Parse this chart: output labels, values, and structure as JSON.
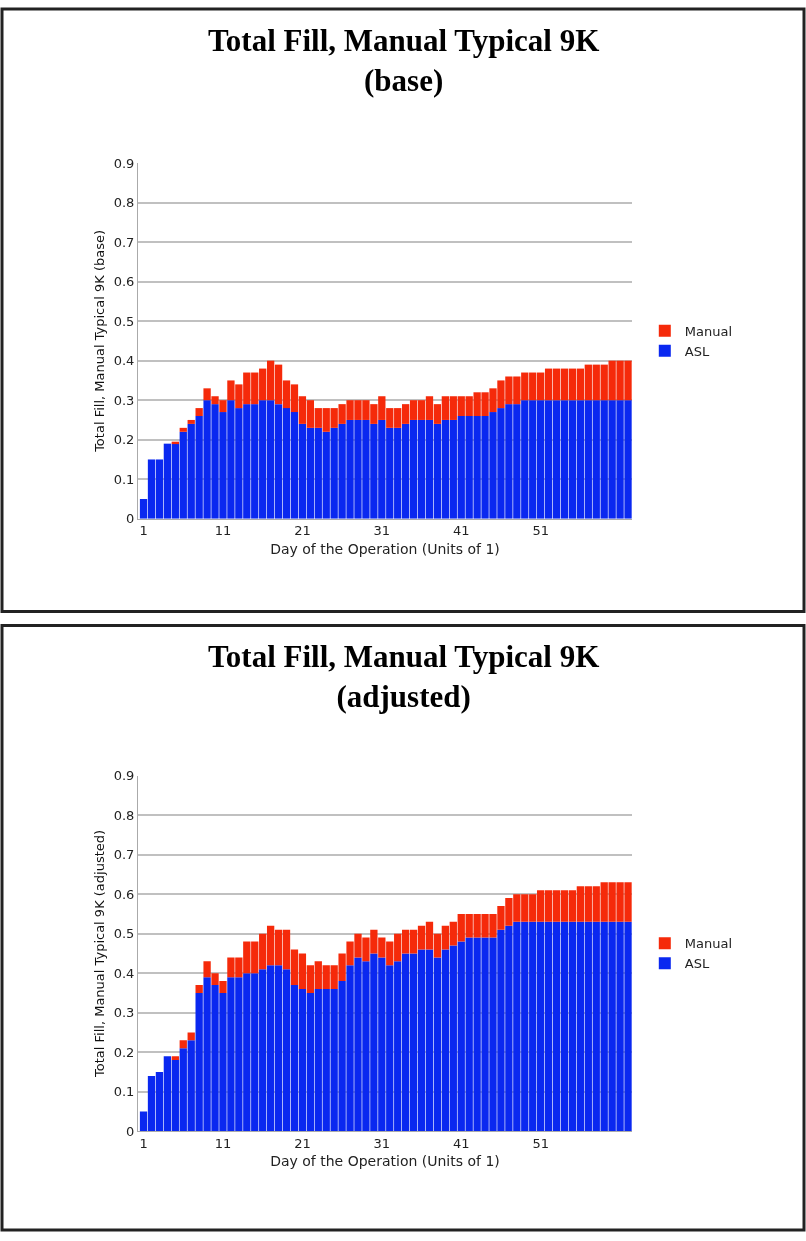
{
  "chart_data": [
    {
      "type": "bar",
      "title": "Total Fill, Manual Typical 9K\n(base)",
      "xlabel": "Day of the Operation (Units of 1)",
      "ylabel": "Total Fill, Manual Typical 9K (base)",
      "categories": [
        "1",
        null,
        null,
        null,
        null,
        null,
        null,
        null,
        null,
        null,
        "11",
        null,
        null,
        null,
        null,
        null,
        null,
        null,
        null,
        null,
        "21",
        null,
        null,
        null,
        null,
        null,
        null,
        null,
        null,
        null,
        "31",
        null,
        null,
        null,
        null,
        null,
        null,
        null,
        null,
        null,
        "41",
        null,
        null,
        null,
        null,
        null,
        null,
        null,
        null,
        null,
        "51",
        null,
        null,
        null,
        null,
        null,
        null,
        null,
        null,
        null,
        null,
        null
      ],
      "stacked": true,
      "ylim": [
        0,
        0.9
      ],
      "yticks": [
        0,
        0.1,
        0.2,
        0.3,
        0.4,
        0.5,
        0.6,
        0.7,
        0.8,
        0.9
      ],
      "grid": "y",
      "legend": "right",
      "series": [
        {
          "name": "ASL",
          "color": "#0a28f0",
          "values": [
            0.05,
            0.15,
            0.15,
            0.19,
            0.19,
            0.22,
            0.24,
            0.26,
            0.3,
            0.29,
            0.27,
            0.3,
            0.28,
            0.29,
            0.29,
            0.3,
            0.3,
            0.29,
            0.28,
            0.27,
            0.24,
            0.23,
            0.23,
            0.22,
            0.23,
            0.24,
            0.25,
            0.25,
            0.25,
            0.24,
            0.25,
            0.23,
            0.23,
            0.24,
            0.25,
            0.25,
            0.25,
            0.24,
            0.25,
            0.25,
            0.26,
            0.26,
            0.26,
            0.26,
            0.27,
            0.28,
            0.29,
            0.29,
            0.3,
            0.3,
            0.3,
            0.3,
            0.3,
            0.3,
            0.3,
            0.3,
            0.3,
            0.3,
            0.3,
            0.3,
            0.3,
            0.3
          ]
        },
        {
          "name": "Manual",
          "color": "#f52a0a",
          "values": [
            0,
            0,
            0,
            0,
            0.005,
            0.01,
            0.01,
            0.02,
            0.03,
            0.02,
            0.03,
            0.05,
            0.06,
            0.08,
            0.08,
            0.08,
            0.1,
            0.1,
            0.07,
            0.07,
            0.07,
            0.07,
            0.05,
            0.06,
            0.05,
            0.05,
            0.05,
            0.05,
            0.05,
            0.05,
            0.06,
            0.05,
            0.05,
            0.05,
            0.05,
            0.05,
            0.06,
            0.05,
            0.06,
            0.06,
            0.05,
            0.05,
            0.06,
            0.06,
            0.06,
            0.07,
            0.07,
            0.07,
            0.07,
            0.07,
            0.07,
            0.08,
            0.08,
            0.08,
            0.08,
            0.08,
            0.09,
            0.09,
            0.09,
            0.1,
            0.1,
            0.1
          ]
        }
      ]
    },
    {
      "type": "bar",
      "title": "Total Fill, Manual Typical 9K\n(adjusted)",
      "xlabel": "Day of the Operation (Units of 1)",
      "ylabel": "Total Fill, Manual Typical 9K (adjusted)",
      "categories": [
        "1",
        null,
        null,
        null,
        null,
        null,
        null,
        null,
        null,
        null,
        "11",
        null,
        null,
        null,
        null,
        null,
        null,
        null,
        null,
        null,
        "21",
        null,
        null,
        null,
        null,
        null,
        null,
        null,
        null,
        null,
        "31",
        null,
        null,
        null,
        null,
        null,
        null,
        null,
        null,
        null,
        "41",
        null,
        null,
        null,
        null,
        null,
        null,
        null,
        null,
        null,
        "51",
        null,
        null,
        null,
        null,
        null,
        null,
        null,
        null,
        null,
        null,
        null
      ],
      "stacked": true,
      "ylim": [
        0,
        0.9
      ],
      "yticks": [
        0,
        0.1,
        0.2,
        0.3,
        0.4,
        0.5,
        0.6,
        0.7,
        0.8,
        0.9
      ],
      "grid": "y",
      "legend": "right",
      "series": [
        {
          "name": "ASL",
          "color": "#0a28f0",
          "values": [
            0.05,
            0.14,
            0.15,
            0.19,
            0.18,
            0.21,
            0.23,
            0.35,
            0.39,
            0.37,
            0.35,
            0.39,
            0.39,
            0.4,
            0.4,
            0.41,
            0.42,
            0.42,
            0.41,
            0.37,
            0.36,
            0.35,
            0.36,
            0.36,
            0.36,
            0.38,
            0.42,
            0.44,
            0.43,
            0.45,
            0.44,
            0.42,
            0.43,
            0.45,
            0.45,
            0.46,
            0.46,
            0.44,
            0.46,
            0.47,
            0.48,
            0.49,
            0.49,
            0.49,
            0.49,
            0.51,
            0.52,
            0.53,
            0.53,
            0.53,
            0.53,
            0.53,
            0.53,
            0.53,
            0.53,
            0.53,
            0.53,
            0.53,
            0.53,
            0.53,
            0.53,
            0.53
          ]
        },
        {
          "name": "Manual",
          "color": "#f52a0a",
          "values": [
            0,
            0,
            0,
            0,
            0.01,
            0.02,
            0.02,
            0.02,
            0.04,
            0.03,
            0.03,
            0.05,
            0.05,
            0.08,
            0.08,
            0.09,
            0.1,
            0.09,
            0.1,
            0.09,
            0.09,
            0.07,
            0.07,
            0.06,
            0.06,
            0.07,
            0.06,
            0.06,
            0.06,
            0.06,
            0.05,
            0.06,
            0.07,
            0.06,
            0.06,
            0.06,
            0.07,
            0.06,
            0.06,
            0.06,
            0.07,
            0.06,
            0.06,
            0.06,
            0.06,
            0.06,
            0.07,
            0.07,
            0.07,
            0.07,
            0.08,
            0.08,
            0.08,
            0.08,
            0.08,
            0.09,
            0.09,
            0.09,
            0.1,
            0.1,
            0.1,
            0.1
          ]
        }
      ]
    }
  ]
}
